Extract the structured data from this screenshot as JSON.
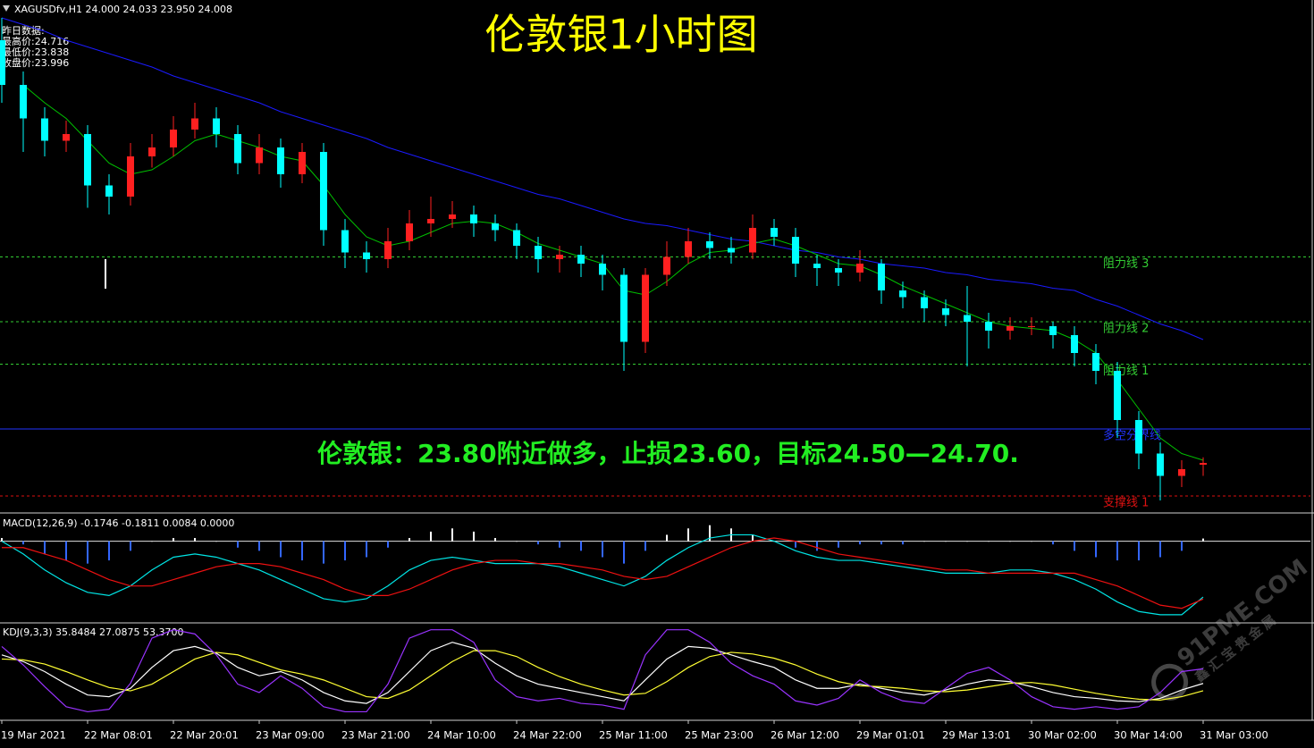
{
  "chart_data": [
    {
      "type": "candlestick",
      "title": "XAGUSDfv,H1  24.000 24.033 23.950 24.008",
      "headline": "伦敦银1小时图",
      "prev_day": [
        "昨日数据:",
        "最高价:24.716",
        "最低价:23.838",
        "收盘价:23.996"
      ],
      "annotation": "伦敦银：23.80附近做多，止损23.60，目标24.50—24.70.",
      "categories": [
        "19 Mar 2021",
        null,
        null,
        null,
        "22 Mar 08:01",
        null,
        null,
        null,
        "22 Mar 20:01",
        null,
        null,
        null,
        "23 Mar 09:00",
        null,
        null,
        null,
        "23 Mar 21:00",
        null,
        null,
        null,
        "24 Mar 10:00",
        null,
        null,
        null,
        "24 Mar 22:00",
        null,
        null,
        null,
        "25 Mar 11:00",
        null,
        null,
        null,
        "25 Mar 23:00",
        null,
        null,
        null,
        "26 Mar 12:00",
        null,
        null,
        null,
        "29 Mar 01:01",
        null,
        null,
        null,
        "29 Mar 13:01",
        null,
        null,
        null,
        "30 Mar 02:00",
        null,
        null,
        null,
        "30 Mar 14:00",
        null,
        null,
        null,
        "31 Mar 03:00"
      ],
      "open": [
        25.9,
        25.7,
        25.55,
        25.45,
        25.48,
        25.25,
        25.2,
        25.38,
        25.42,
        25.5,
        25.55,
        25.48,
        25.35,
        25.42,
        25.3,
        25.4,
        25.05,
        24.95,
        24.92,
        25.0,
        25.08,
        25.1,
        25.12,
        25.08,
        25.05,
        24.98,
        24.92,
        24.94,
        24.9,
        24.85,
        24.55,
        24.85,
        24.93,
        25.0,
        24.97,
        24.95,
        25.06,
        25.02,
        24.9,
        24.88,
        24.86,
        24.9,
        24.78,
        24.75,
        24.7,
        24.67,
        24.64,
        24.6,
        24.62,
        24.62,
        24.58,
        24.5,
        24.42,
        24.2,
        24.05,
        23.95,
        24.0
      ],
      "high": [
        26.0,
        25.76,
        25.6,
        25.54,
        25.52,
        25.3,
        25.44,
        25.48,
        25.56,
        25.62,
        25.6,
        25.52,
        25.48,
        25.46,
        25.44,
        25.44,
        25.1,
        25.0,
        25.06,
        25.14,
        25.2,
        25.18,
        25.16,
        25.12,
        25.08,
        25.02,
        24.98,
        24.98,
        24.94,
        24.88,
        24.88,
        25.0,
        25.06,
        25.04,
        25.02,
        25.12,
        25.1,
        25.06,
        24.94,
        24.92,
        24.96,
        24.92,
        24.82,
        24.78,
        24.74,
        24.8,
        24.68,
        24.66,
        24.66,
        24.64,
        24.62,
        24.54,
        24.46,
        24.24,
        24.1,
        24.02,
        24.033
      ],
      "low": [
        25.62,
        25.4,
        25.38,
        25.4,
        25.15,
        25.12,
        25.16,
        25.33,
        25.38,
        25.46,
        25.42,
        25.3,
        25.3,
        25.24,
        25.26,
        24.98,
        24.88,
        24.86,
        24.88,
        24.96,
        25.02,
        25.06,
        25.02,
        25.0,
        24.92,
        24.86,
        24.86,
        24.84,
        24.78,
        24.42,
        24.5,
        24.8,
        24.9,
        24.92,
        24.9,
        24.92,
        24.98,
        24.84,
        24.8,
        24.8,
        24.82,
        24.72,
        24.7,
        24.64,
        24.62,
        24.44,
        24.52,
        24.56,
        24.58,
        24.52,
        24.44,
        24.36,
        24.12,
        23.98,
        23.84,
        23.9,
        23.95
      ],
      "close": [
        25.7,
        25.55,
        25.45,
        25.48,
        25.25,
        25.2,
        25.38,
        25.42,
        25.5,
        25.55,
        25.48,
        25.35,
        25.42,
        25.3,
        25.4,
        25.05,
        24.95,
        24.92,
        25.0,
        25.08,
        25.1,
        25.12,
        25.08,
        25.05,
        24.98,
        24.92,
        24.94,
        24.9,
        24.85,
        24.55,
        24.85,
        24.93,
        25.0,
        24.97,
        24.95,
        25.06,
        25.02,
        24.9,
        24.88,
        24.86,
        24.9,
        24.78,
        24.75,
        24.7,
        24.67,
        24.64,
        24.6,
        24.62,
        24.62,
        24.58,
        24.5,
        24.42,
        24.2,
        24.05,
        23.95,
        23.98,
        24.008
      ],
      "up_color": "#ff2020",
      "down_color": "#00ffff",
      "series": [
        {
          "color": "#1a1aff",
          "values": [
            26.0,
            25.97,
            25.94,
            25.9,
            25.87,
            25.84,
            25.81,
            25.78,
            25.74,
            25.71,
            25.68,
            25.65,
            25.62,
            25.58,
            25.55,
            25.52,
            25.49,
            25.46,
            25.42,
            25.39,
            25.36,
            25.33,
            25.3,
            25.27,
            25.24,
            25.21,
            25.19,
            25.16,
            25.13,
            25.1,
            25.08,
            25.07,
            25.05,
            25.03,
            25.01,
            25.0,
            24.98,
            24.96,
            24.95,
            24.93,
            24.92,
            24.9,
            24.89,
            24.88,
            24.86,
            24.85,
            24.83,
            24.82,
            24.81,
            24.79,
            24.78,
            24.74,
            24.71,
            24.67,
            24.63,
            24.6,
            24.56
          ]
        },
        {
          "color": "#00c000",
          "values": [
            null,
            25.7,
            25.62,
            25.55,
            25.45,
            25.35,
            25.3,
            25.32,
            25.38,
            25.45,
            25.48,
            25.45,
            25.42,
            25.38,
            25.36,
            25.25,
            25.12,
            25.02,
            24.98,
            25.0,
            25.04,
            25.08,
            25.09,
            25.08,
            25.04,
            24.99,
            24.96,
            24.93,
            24.9,
            24.78,
            24.76,
            24.82,
            24.9,
            24.95,
            24.96,
            24.99,
            25.01,
            24.98,
            24.94,
            24.9,
            24.89,
            24.85,
            24.8,
            24.76,
            24.72,
            24.68,
            24.64,
            24.62,
            24.61,
            24.6,
            24.56,
            24.5,
            24.38,
            24.25,
            24.12,
            24.05,
            24.02
          ]
        }
      ],
      "levels": [
        {
          "label": "阻力线 3",
          "value": 24.93,
          "color": "#33cc33",
          "style": "dashed"
        },
        {
          "label": "阻力线 2",
          "value": 24.64,
          "color": "#33cc33",
          "style": "dashed"
        },
        {
          "label": "阻力线 1",
          "value": 24.45,
          "color": "#33cc33",
          "style": "dashed"
        },
        {
          "label": "多空分界线",
          "value": 24.16,
          "color": "#2233ff",
          "style": "solid"
        },
        {
          "label": "支撑线 1",
          "value": 23.86,
          "color": "#dd1111",
          "style": "dashed"
        }
      ],
      "ylim": [
        23.792,
        26.08
      ]
    },
    {
      "type": "macd",
      "title": "MACD(12,26,9) -0.1746 -0.1811 0.0084 0.0000",
      "histogram": [
        0.01,
        -0.01,
        -0.04,
        -0.06,
        -0.07,
        -0.06,
        -0.03,
        0.0,
        0.01,
        0.01,
        0.0,
        -0.02,
        -0.03,
        -0.05,
        -0.06,
        -0.07,
        -0.06,
        -0.05,
        -0.02,
        0.01,
        0.03,
        0.04,
        0.03,
        0.01,
        0.0,
        -0.01,
        -0.02,
        -0.03,
        -0.05,
        -0.07,
        -0.03,
        0.02,
        0.04,
        0.05,
        0.04,
        0.02,
        0.0,
        -0.02,
        -0.03,
        -0.02,
        -0.01,
        -0.01,
        -0.01,
        0.0,
        0.0,
        0.0,
        0.0,
        0.0,
        0.0,
        -0.01,
        -0.03,
        -0.05,
        -0.06,
        -0.06,
        -0.05,
        -0.03,
        0.0084
      ],
      "up_color": "#ffffff",
      "down_color": "#3366ff",
      "series": [
        {
          "color": "#00e5e5",
          "values": [
            0.0,
            -0.04,
            -0.09,
            -0.13,
            -0.16,
            -0.17,
            -0.14,
            -0.09,
            -0.05,
            -0.04,
            -0.05,
            -0.07,
            -0.09,
            -0.12,
            -0.15,
            -0.18,
            -0.19,
            -0.18,
            -0.14,
            -0.09,
            -0.06,
            -0.05,
            -0.06,
            -0.07,
            -0.07,
            -0.07,
            -0.08,
            -0.1,
            -0.12,
            -0.14,
            -0.11,
            -0.06,
            -0.02,
            0.01,
            0.02,
            0.02,
            0.0,
            -0.03,
            -0.05,
            -0.06,
            -0.06,
            -0.07,
            -0.08,
            -0.09,
            -0.1,
            -0.1,
            -0.1,
            -0.09,
            -0.09,
            -0.1,
            -0.12,
            -0.15,
            -0.19,
            -0.22,
            -0.23,
            -0.23,
            -0.1746
          ]
        },
        {
          "color": "#ee1111",
          "values": [
            -0.02,
            -0.02,
            -0.04,
            -0.06,
            -0.09,
            -0.12,
            -0.14,
            -0.14,
            -0.12,
            -0.1,
            -0.08,
            -0.07,
            -0.07,
            -0.08,
            -0.1,
            -0.12,
            -0.15,
            -0.17,
            -0.17,
            -0.15,
            -0.12,
            -0.09,
            -0.07,
            -0.06,
            -0.06,
            -0.07,
            -0.07,
            -0.08,
            -0.09,
            -0.11,
            -0.12,
            -0.11,
            -0.08,
            -0.05,
            -0.02,
            0.0,
            0.01,
            0.0,
            -0.02,
            -0.04,
            -0.05,
            -0.06,
            -0.07,
            -0.08,
            -0.09,
            -0.09,
            -0.1,
            -0.1,
            -0.1,
            -0.1,
            -0.1,
            -0.12,
            -0.14,
            -0.17,
            -0.2,
            -0.21,
            -0.1811
          ]
        }
      ],
      "ylim": [
        -0.25,
        0.08
      ]
    },
    {
      "type": "line",
      "title": "KDJ(9,3,3) 35.8484 27.0875 53.3700",
      "series": [
        {
          "color": "#ffffff",
          "values": [
            70,
            62,
            50,
            35,
            22,
            20,
            30,
            55,
            75,
            80,
            72,
            55,
            45,
            50,
            40,
            25,
            15,
            12,
            25,
            50,
            75,
            85,
            78,
            60,
            45,
            35,
            30,
            25,
            20,
            15,
            40,
            65,
            80,
            78,
            70,
            62,
            55,
            40,
            30,
            30,
            35,
            30,
            25,
            22,
            28,
            35,
            40,
            38,
            32,
            25,
            20,
            18,
            15,
            14,
            18,
            28,
            35.8484
          ]
        },
        {
          "color": "#ffff33",
          "values": [
            65,
            64,
            59,
            50,
            40,
            31,
            27,
            35,
            50,
            65,
            73,
            70,
            61,
            52,
            47,
            40,
            30,
            20,
            18,
            28,
            45,
            62,
            75,
            75,
            68,
            55,
            44,
            35,
            28,
            22,
            24,
            38,
            55,
            68,
            73,
            71,
            66,
            58,
            47,
            38,
            33,
            32,
            30,
            27,
            26,
            28,
            32,
            36,
            37,
            34,
            29,
            24,
            20,
            17,
            16,
            20,
            27.0875
          ]
        },
        {
          "color": "#9933ff",
          "values": [
            80,
            58,
            32,
            8,
            2,
            5,
            36,
            90,
            100,
            95,
            70,
            35,
            25,
            45,
            30,
            8,
            2,
            2,
            35,
            90,
            100,
            100,
            85,
            40,
            20,
            15,
            18,
            12,
            10,
            5,
            70,
            100,
            100,
            85,
            60,
            45,
            35,
            15,
            10,
            18,
            40,
            25,
            15,
            12,
            30,
            48,
            55,
            40,
            20,
            8,
            5,
            8,
            5,
            8,
            25,
            50,
            53.37
          ]
        }
      ],
      "ylim": [
        -5,
        105
      ]
    }
  ],
  "watermark": {
    "site": "91PME.COM",
    "name": "鑫汇宝贵金属"
  }
}
